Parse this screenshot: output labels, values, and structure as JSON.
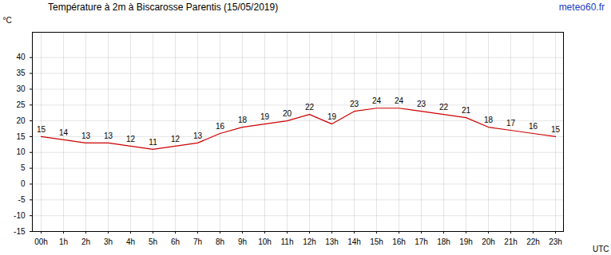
{
  "chart_data": {
    "type": "line",
    "title": "Température à 2m à Biscarosse Parentis (15/05/2019)",
    "annotations": [
      "meteo60.fr"
    ],
    "x_label": "UTC",
    "y_label": "°C",
    "categories": [
      "00h",
      "1h",
      "2h",
      "3h",
      "4h",
      "5h",
      "6h",
      "7h",
      "8h",
      "9h",
      "10h",
      "11h",
      "12h",
      "13h",
      "14h",
      "15h",
      "16h",
      "17h",
      "18h",
      "19h",
      "20h",
      "21h",
      "22h",
      "23h"
    ],
    "values": [
      15,
      14,
      13,
      13,
      12,
      11,
      12,
      13,
      16,
      18,
      19,
      20,
      22,
      19,
      23,
      24,
      24,
      23,
      22,
      21,
      18,
      17,
      16,
      15
    ],
    "color": "#cc0000",
    "ylim": [
      -15,
      48
    ],
    "yticks": [
      -15,
      -10,
      -5,
      0,
      5,
      10,
      15,
      20,
      25,
      30,
      35,
      40
    ],
    "grid": true,
    "data_labels": true
  }
}
